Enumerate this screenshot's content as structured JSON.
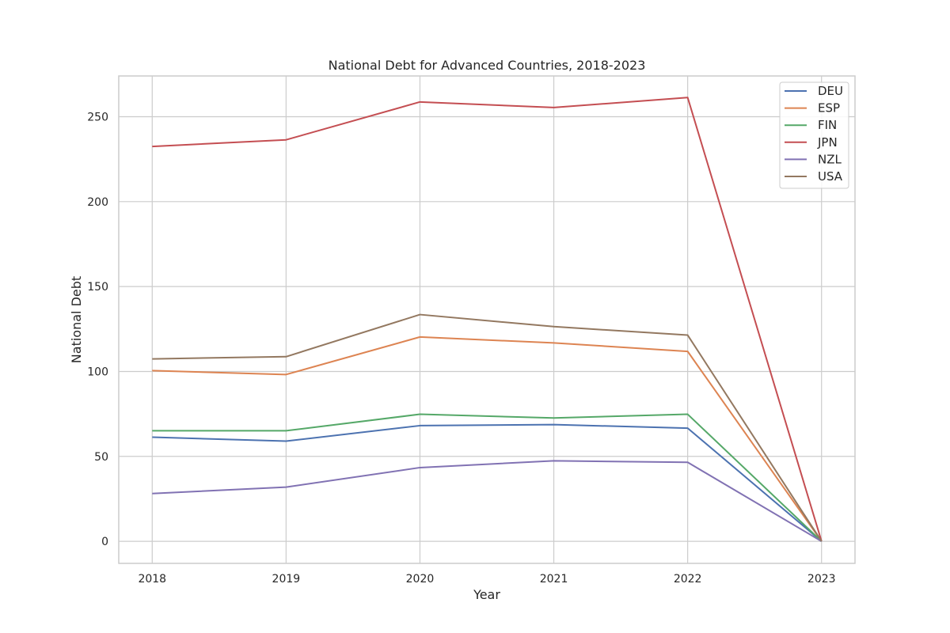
{
  "chart_data": {
    "type": "line",
    "title": "National Debt for Advanced Countries, 2018-2023",
    "xlabel": "Year",
    "ylabel": "National Debt",
    "x": [
      "2018",
      "2019",
      "2020",
      "2021",
      "2022",
      "2023"
    ],
    "xlim": [
      2017.75,
      2023.25
    ],
    "ylim": [
      -13,
      274
    ],
    "yticks": [
      0,
      50,
      100,
      150,
      200,
      250
    ],
    "grid": true,
    "legend_position": "top-right",
    "series": [
      {
        "name": "DEU",
        "color": "#4c72b0",
        "values": [
          61.3,
          59.0,
          68.1,
          68.7,
          66.6,
          0
        ]
      },
      {
        "name": "ESP",
        "color": "#dd8452",
        "values": [
          100.5,
          98.2,
          120.3,
          116.8,
          111.8,
          0
        ]
      },
      {
        "name": "FIN",
        "color": "#55a868",
        "values": [
          65.1,
          65.1,
          74.8,
          72.6,
          74.8,
          0
        ]
      },
      {
        "name": "JPN",
        "color": "#c44e52",
        "values": [
          232.5,
          236.4,
          258.7,
          255.4,
          261.3,
          0
        ]
      },
      {
        "name": "NZL",
        "color": "#8172b3",
        "values": [
          28.1,
          31.9,
          43.4,
          47.4,
          46.5,
          0
        ]
      },
      {
        "name": "USA",
        "color": "#937860",
        "values": [
          107.4,
          108.7,
          133.5,
          126.4,
          121.4,
          0
        ]
      }
    ]
  }
}
